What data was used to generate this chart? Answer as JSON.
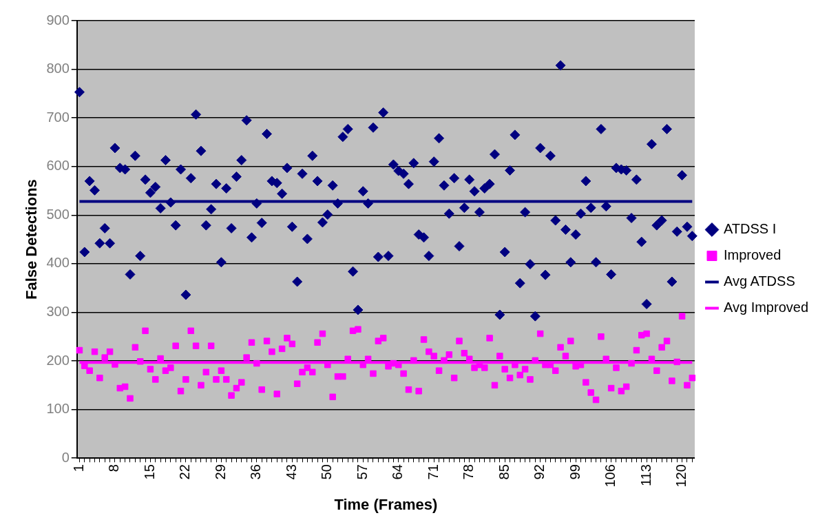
{
  "chart_data": {
    "type": "scatter",
    "xlabel": "Time (Frames)",
    "ylabel": "False Detections",
    "categories": [
      "1",
      null,
      null,
      null,
      null,
      null,
      null,
      "8",
      null,
      null,
      null,
      null,
      null,
      null,
      "15",
      null,
      null,
      null,
      null,
      null,
      null,
      "22",
      null,
      null,
      null,
      null,
      null,
      null,
      "29",
      null,
      null,
      null,
      null,
      null,
      null,
      "36",
      null,
      null,
      null,
      null,
      null,
      null,
      "43",
      null,
      null,
      null,
      null,
      null,
      null,
      "50",
      null,
      null,
      null,
      null,
      null,
      null,
      "57",
      null,
      null,
      null,
      null,
      null,
      null,
      "64",
      null,
      null,
      null,
      null,
      null,
      null,
      "71",
      null,
      null,
      null,
      null,
      null,
      null,
      "78",
      null,
      null,
      null,
      null,
      null,
      null,
      "85",
      null,
      null,
      null,
      null,
      null,
      null,
      "92",
      null,
      null,
      null,
      null,
      null,
      null,
      "99",
      null,
      null,
      null,
      null,
      null,
      null,
      "106",
      null,
      null,
      null,
      null,
      null,
      null,
      "113",
      null,
      null,
      null,
      null,
      null,
      null,
      "120",
      null,
      null
    ],
    "series": [
      {
        "name": "ATDSS I",
        "marker": "diamond",
        "color": "#000080",
        "values": [
          753,
          424,
          570,
          551,
          442,
          473,
          442,
          638,
          597,
          594,
          378,
          622,
          416,
          573,
          546,
          558,
          514,
          613,
          526,
          479,
          594,
          336,
          576,
          707,
          632,
          479,
          512,
          564,
          403,
          555,
          473,
          579,
          613,
          695,
          454,
          524,
          484,
          667,
          570,
          566,
          544,
          597,
          476,
          363,
          585,
          451,
          622,
          570,
          485,
          501,
          561,
          524,
          661,
          677,
          384,
          305,
          549,
          524,
          680,
          414,
          711,
          416,
          604,
          591,
          585,
          564,
          607,
          460,
          454,
          416,
          610,
          658,
          561,
          503,
          576,
          436,
          515,
          573,
          549,
          506,
          555,
          564,
          625,
          295,
          424,
          592,
          665,
          360,
          506,
          399,
          292,
          638,
          377,
          622,
          489,
          808,
          470,
          403,
          460,
          503,
          570,
          515,
          403,
          677,
          518,
          378,
          597,
          594,
          592,
          494,
          573,
          445,
          317,
          646,
          479,
          489,
          677,
          363,
          466,
          582,
          476,
          457
        ]
      },
      {
        "name": "Improved",
        "marker": "square",
        "color": "#ff00ff",
        "values": [
          222,
          190,
          180,
          219,
          165,
          207,
          219,
          193,
          144,
          147,
          123,
          228,
          199,
          262,
          183,
          162,
          205,
          180,
          186,
          231,
          138,
          162,
          262,
          231,
          150,
          177,
          231,
          162,
          180,
          162,
          129,
          144,
          156,
          207,
          238,
          195,
          141,
          241,
          219,
          132,
          225,
          247,
          235,
          153,
          177,
          186,
          177,
          238,
          256,
          192,
          126,
          168,
          168,
          204,
          262,
          265,
          192,
          204,
          174,
          241,
          247,
          189,
          195,
          192,
          174,
          141,
          201,
          138,
          244,
          219,
          210,
          180,
          201,
          213,
          165,
          241,
          216,
          204,
          186,
          192,
          186,
          247,
          150,
          210,
          183,
          165,
          192,
          171,
          183,
          162,
          201,
          256,
          192,
          192,
          180,
          228,
          210,
          241,
          189,
          192,
          156,
          135,
          120,
          250,
          204,
          144,
          186,
          138,
          147,
          195,
          222,
          253,
          256,
          204,
          180,
          228,
          241,
          159,
          198,
          292,
          150,
          165
        ]
      },
      {
        "name": "Avg ATDSS",
        "type": "line",
        "marker": "none",
        "line_style": "solid",
        "color": "#000080",
        "values": [
          528,
          528,
          528,
          528,
          528,
          528,
          528,
          528,
          528,
          528,
          528,
          528,
          528,
          528,
          528,
          528,
          528,
          528,
          528,
          528,
          528,
          528,
          528,
          528,
          528,
          528,
          528,
          528,
          528,
          528,
          528,
          528,
          528,
          528,
          528,
          528,
          528,
          528,
          528,
          528,
          528,
          528,
          528,
          528,
          528,
          528,
          528,
          528,
          528,
          528,
          528,
          528,
          528,
          528,
          528,
          528,
          528,
          528,
          528,
          528,
          528,
          528,
          528,
          528,
          528,
          528,
          528,
          528,
          528,
          528,
          528,
          528,
          528,
          528,
          528,
          528,
          528,
          528,
          528,
          528,
          528,
          528,
          528,
          528,
          528,
          528,
          528,
          528,
          528,
          528,
          528,
          528,
          528,
          528,
          528,
          528,
          528,
          528,
          528,
          528,
          528,
          528,
          528,
          528,
          528,
          528,
          528,
          528,
          528,
          528,
          528,
          528,
          528,
          528,
          528,
          528,
          528,
          528,
          528,
          528,
          528,
          528
        ]
      },
      {
        "name": "Avg Improved",
        "type": "line",
        "marker": "none",
        "line_style": "solid",
        "color": "#ff00ff",
        "values": [
          197,
          197,
          197,
          197,
          197,
          197,
          197,
          197,
          197,
          197,
          197,
          197,
          197,
          197,
          197,
          197,
          197,
          197,
          197,
          197,
          197,
          197,
          197,
          197,
          197,
          197,
          197,
          197,
          197,
          197,
          197,
          197,
          197,
          197,
          197,
          197,
          197,
          197,
          197,
          197,
          197,
          197,
          197,
          197,
          197,
          197,
          197,
          197,
          197,
          197,
          197,
          197,
          197,
          197,
          197,
          197,
          197,
          197,
          197,
          197,
          197,
          197,
          197,
          197,
          197,
          197,
          197,
          197,
          197,
          197,
          197,
          197,
          197,
          197,
          197,
          197,
          197,
          197,
          197,
          197,
          197,
          197,
          197,
          197,
          197,
          197,
          197,
          197,
          197,
          197,
          197,
          197,
          197,
          197,
          197,
          197,
          197,
          197,
          197,
          197,
          197,
          197,
          197,
          197,
          197,
          197,
          197,
          197,
          197,
          197,
          197,
          197,
          197,
          197,
          197,
          197,
          197,
          197,
          197,
          197,
          197,
          197
        ]
      }
    ],
    "ylim": [
      0,
      900
    ],
    "yticks": [
      0,
      100,
      200,
      300,
      400,
      500,
      600,
      700,
      800,
      900
    ],
    "grid": "y",
    "legend": "right"
  }
}
